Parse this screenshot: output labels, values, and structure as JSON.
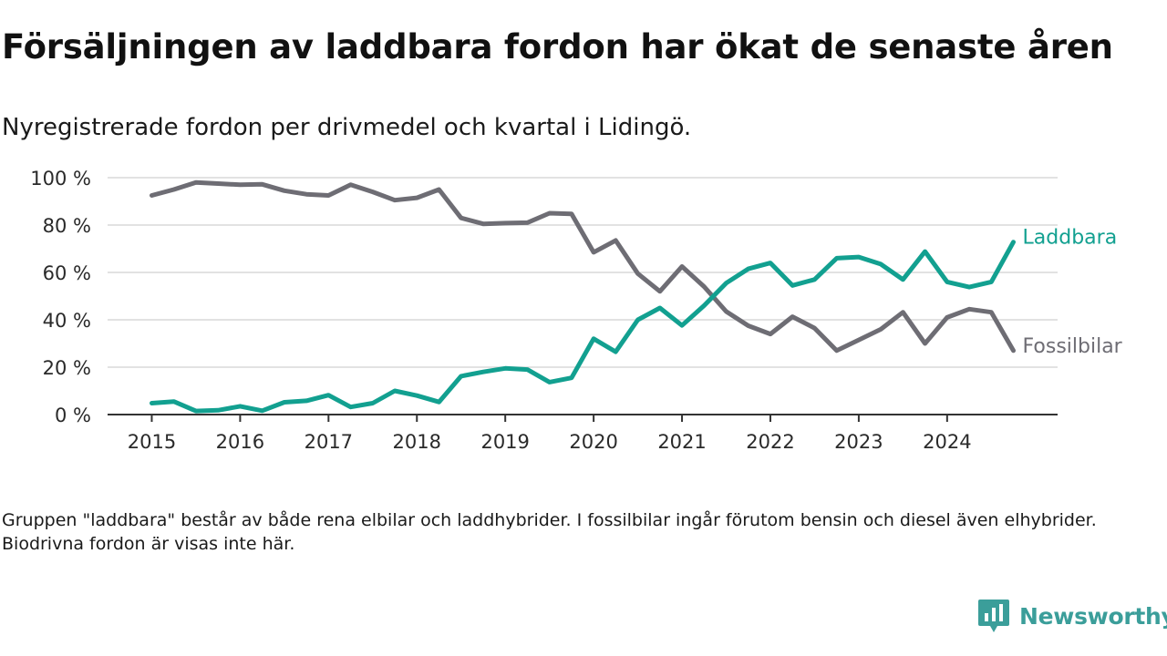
{
  "title": "Försäljningen av laddbara fordon har ökat de senaste åren",
  "subtitle": "Nyregistrerade fordon per drivmedel och kvartal i Lidingö.",
  "note": "Gruppen \"laddbara\" består av både rena elbilar och laddhybrider. I fossilbilar ingår förutom bensin och diesel även elhybrider. Biodrivna fordon är visas inte här.",
  "brand": {
    "name": "Newsworthy",
    "color": "#3b9e9a"
  },
  "chart_data": {
    "type": "line",
    "title": "Försäljningen av laddbara fordon har ökat de senaste åren",
    "subtitle": "Nyregistrerade fordon per drivmedel och kvartal i Lidingö.",
    "xlabel": "",
    "ylabel": "",
    "ylim": [
      0,
      100
    ],
    "y_ticks": [
      0,
      20,
      40,
      60,
      80,
      100
    ],
    "y_tick_labels": [
      "0 %",
      "20 %",
      "40 %",
      "60 %",
      "80 %",
      "100 %"
    ],
    "x_ticks": [
      2015,
      2016,
      2017,
      2018,
      2019,
      2020,
      2021,
      2022,
      2023,
      2024
    ],
    "x_tick_labels": [
      "2015",
      "2016",
      "2017",
      "2018",
      "2019",
      "2020",
      "2021",
      "2022",
      "2023",
      "2024"
    ],
    "xlim": [
      2014.5,
      2025.25
    ],
    "grid": true,
    "legend": "direct labels at line ends",
    "x": [
      2015,
      2015.25,
      2015.5,
      2015.75,
      2016,
      2016.25,
      2016.5,
      2016.75,
      2017,
      2017.25,
      2017.5,
      2017.75,
      2018,
      2018.25,
      2018.5,
      2018.75,
      2019,
      2019.25,
      2019.5,
      2019.75,
      2020,
      2020.25,
      2020.5,
      2020.75,
      2021,
      2021.25,
      2021.5,
      2021.75,
      2022,
      2022.25,
      2022.5,
      2022.75,
      2023,
      2023.25,
      2023.5,
      2023.75,
      2024,
      2024.25,
      2024.5,
      2024.75
    ],
    "series": [
      {
        "name": "Fossilbilar",
        "color": "#6e6d74",
        "values": [
          92.5,
          95,
          98,
          97.5,
          97,
          97.2,
          94.5,
          93,
          92.5,
          97,
          94,
          90.5,
          91.5,
          95,
          83,
          80.5,
          80.8,
          81,
          85,
          84.7,
          68.5,
          73.5,
          59.5,
          52,
          62.5,
          54,
          43.5,
          37.5,
          34,
          41.3,
          36.5,
          27,
          31.5,
          36,
          43.2,
          30,
          41,
          44.5,
          43.2,
          27
        ]
      },
      {
        "name": "Laddbara",
        "color": "#12a090",
        "values": [
          4.8,
          5.5,
          1.5,
          1.8,
          3.5,
          1.6,
          5.2,
          5.8,
          8.2,
          3.2,
          4.8,
          10,
          8,
          5.3,
          16.2,
          18,
          19.5,
          19,
          13.7,
          15.5,
          32,
          26.5,
          40,
          45,
          37.6,
          46,
          55.5,
          61.5,
          64,
          54.5,
          57,
          66,
          66.5,
          63.5,
          57,
          68.8,
          56,
          53.8,
          56,
          72.8
        ]
      }
    ]
  }
}
